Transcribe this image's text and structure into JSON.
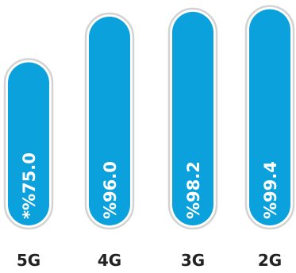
{
  "chart_data": {
    "type": "bar",
    "orientation": "vertical",
    "categories": [
      "5G",
      "4G",
      "3G",
      "2G"
    ],
    "values": [
      75.0,
      96.0,
      98.2,
      99.4
    ],
    "value_labels": [
      "*%75.0",
      "%96.0",
      "%98.2",
      "%99.4"
    ],
    "ylim": [
      0,
      100
    ],
    "grid": false,
    "legend": "none",
    "title": "",
    "xlabel": "",
    "ylabel": ""
  },
  "colors": {
    "bar_fill": "#0AA1DC",
    "bar_outline": "#D3D3D3",
    "category_text": "#222222",
    "value_text": "#FFFFFF"
  }
}
